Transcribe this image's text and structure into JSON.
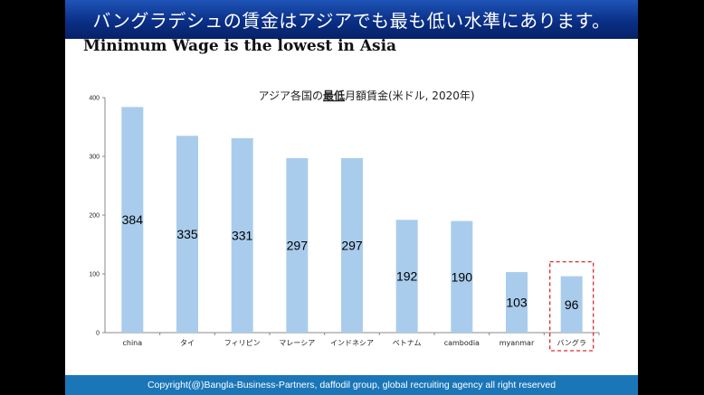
{
  "slide": {
    "title": "バングラデシュの賃金はアジアでも最も低い水準にあります。",
    "subtitle": "Minimum Wage is the lowest in Asia",
    "footer": "Copyright(@)Bangla-Business-Partners, daffodil group, global recruiting agency all right reserved"
  },
  "chart_data": {
    "type": "bar",
    "title_pre": "アジア各国の",
    "title_emph": "最低",
    "title_post": "月額賃金(米ドル, 2020年)",
    "categories": [
      "china",
      "タイ",
      "フィリピン",
      "マレーシア",
      "インドネシア",
      "ベトナム",
      "cambodia",
      "myanmar",
      "バングラ"
    ],
    "values": [
      384,
      335,
      331,
      297,
      297,
      192,
      190,
      103,
      96
    ],
    "data_labels": [
      "384",
      "335",
      "331",
      "297",
      "297",
      "192",
      "190",
      "103",
      "96"
    ],
    "ylim": [
      0,
      400
    ],
    "yticks": [
      "0",
      "100",
      "200",
      "300",
      "400"
    ],
    "bar_color": "#a9ccec",
    "highlight_index": 8,
    "highlight_color": "#e0282e",
    "grid": false,
    "legend": "none"
  }
}
